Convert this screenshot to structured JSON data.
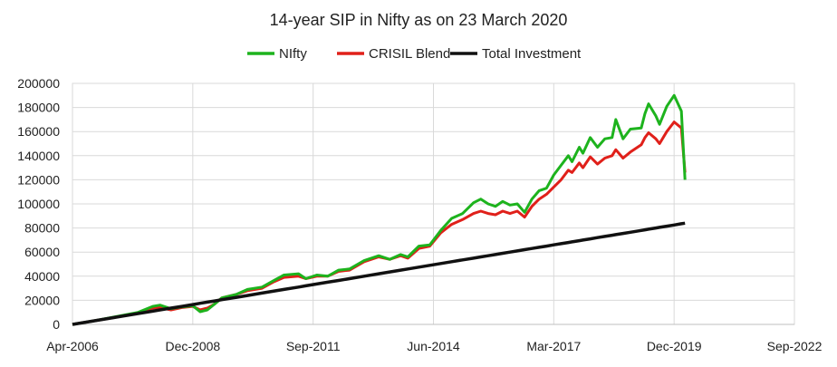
{
  "chart_data": {
    "type": "line",
    "title": "14-year SIP in Nifty as on 23 March 2020",
    "xlabel": "",
    "ylabel": "",
    "x_unit": "months since Apr-2006",
    "xlim": [
      0,
      198
    ],
    "ylim": [
      0,
      200000
    ],
    "x_ticks": [
      {
        "x": 0,
        "label": "Apr-2006"
      },
      {
        "x": 33,
        "label": "Dec-2008"
      },
      {
        "x": 66,
        "label": "Sep-2011"
      },
      {
        "x": 99,
        "label": "Jun-2014"
      },
      {
        "x": 132,
        "label": "Mar-2017"
      },
      {
        "x": 165,
        "label": "Dec-2019"
      },
      {
        "x": 198,
        "label": "Sep-2022"
      }
    ],
    "y_ticks": [
      0,
      20000,
      40000,
      60000,
      80000,
      100000,
      120000,
      140000,
      160000,
      180000,
      200000
    ],
    "grid": true,
    "legend_position": "top-center",
    "x": [
      0,
      6,
      12,
      18,
      22,
      24,
      27,
      30,
      33,
      35,
      37,
      39,
      41,
      45,
      48,
      52,
      55,
      58,
      62,
      64,
      67,
      70,
      73,
      76,
      80,
      84,
      87,
      90,
      92,
      95,
      98,
      101,
      104,
      107,
      110,
      112,
      114,
      116,
      118,
      120,
      122,
      124,
      126,
      128,
      130,
      132,
      134,
      136,
      137,
      139,
      140,
      142,
      144,
      146,
      148,
      149,
      151,
      153,
      156,
      157,
      158,
      160,
      161,
      163,
      165,
      167,
      168
    ],
    "series": [
      {
        "name": "NIfty",
        "color": "#1db31d",
        "values": [
          0,
          3000,
          6500,
          10000,
          15000,
          16000,
          13000,
          14500,
          15500,
          10500,
          12000,
          17000,
          22000,
          25000,
          29000,
          31000,
          36000,
          41000,
          42000,
          38000,
          41000,
          40000,
          45000,
          46000,
          53000,
          57000,
          54000,
          58000,
          56000,
          65000,
          66000,
          78000,
          88000,
          92000,
          101000,
          104000,
          100000,
          98000,
          102000,
          99000,
          100000,
          93000,
          104000,
          111000,
          113000,
          124000,
          132000,
          140000,
          135000,
          147000,
          142000,
          155000,
          147000,
          154000,
          155000,
          170000,
          154000,
          162000,
          163000,
          175000,
          183000,
          173000,
          166000,
          181000,
          190000,
          177000,
          120000
        ]
      },
      {
        "name": "CRISIL Blend",
        "color": "#e0201a",
        "values": [
          0,
          3000,
          6000,
          9500,
          13500,
          14000,
          12000,
          14000,
          15000,
          12000,
          13500,
          17000,
          22000,
          25000,
          28000,
          30000,
          35000,
          39000,
          40000,
          38000,
          40000,
          40000,
          44000,
          45000,
          52000,
          56000,
          54000,
          57000,
          55000,
          63000,
          65000,
          76000,
          83000,
          87000,
          92000,
          94000,
          92000,
          91000,
          94000,
          92000,
          94000,
          89000,
          98000,
          104000,
          108000,
          114000,
          120000,
          128000,
          126000,
          134000,
          130000,
          139000,
          133000,
          138000,
          140000,
          145000,
          138000,
          143000,
          149000,
          155000,
          159000,
          154000,
          150000,
          160000,
          168000,
          163000,
          126000
        ]
      },
      {
        "name": "Total Investment",
        "color": "#111111",
        "values": [
          0,
          3000,
          6000,
          9000,
          11000,
          12000,
          13500,
          15000,
          16500,
          17500,
          18500,
          19500,
          20500,
          22500,
          24000,
          26000,
          27500,
          29000,
          31000,
          32000,
          33500,
          35000,
          36500,
          38000,
          40000,
          42000,
          43500,
          45000,
          46000,
          47500,
          49000,
          50500,
          52000,
          53500,
          55000,
          56000,
          57000,
          58000,
          59000,
          60000,
          61000,
          62000,
          63000,
          64000,
          65000,
          66000,
          67000,
          68000,
          68500,
          69500,
          70000,
          71000,
          72000,
          73000,
          74000,
          74500,
          75500,
          76500,
          78000,
          78500,
          79000,
          80000,
          80500,
          81500,
          82500,
          83500,
          84000
        ]
      }
    ]
  }
}
